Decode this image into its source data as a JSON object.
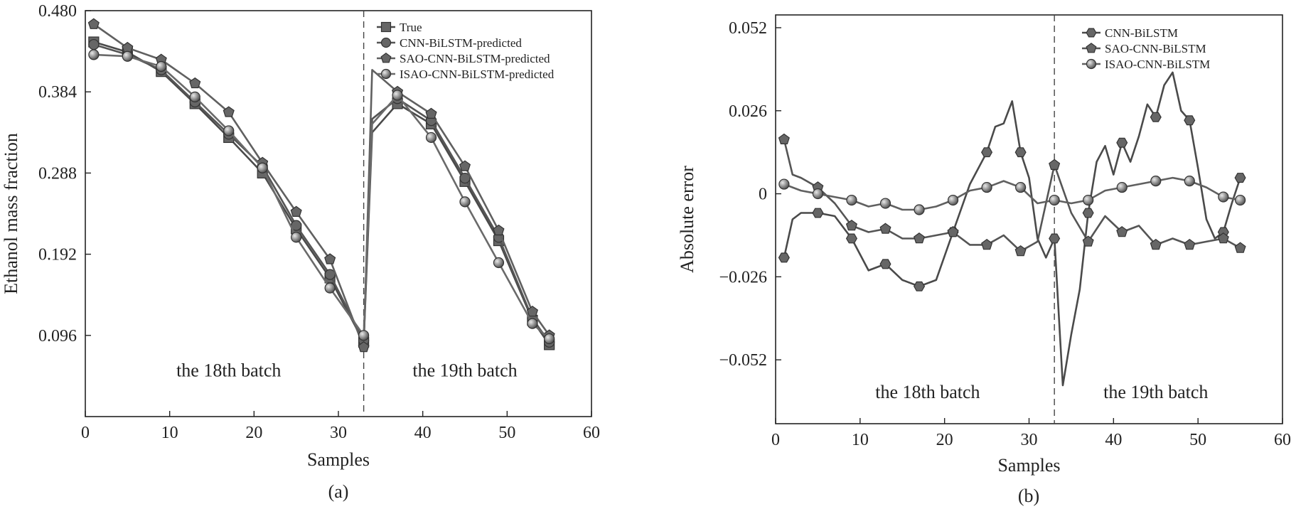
{
  "chart_data": [
    {
      "type": "line",
      "panel_label": "(a)",
      "xlabel": "Samples",
      "ylabel": "Ethanol mass fraction",
      "xlim": [
        0,
        60
      ],
      "ylim": [
        0,
        0.48
      ],
      "xticks": [
        0,
        10,
        20,
        30,
        40,
        50,
        60
      ],
      "yticks": [
        0.096,
        0.192,
        0.288,
        0.384,
        0.48
      ],
      "ytick_labels": [
        "0.096",
        "0.192",
        "0.288",
        "0.384",
        "0.480"
      ],
      "legend_position": "top-right",
      "divider_x": 33,
      "annotations": [
        {
          "text": "the 18th batch",
          "x": 17,
          "y": 0.055
        },
        {
          "text": "the 19th batch",
          "x": 45,
          "y": 0.055
        }
      ],
      "series": [
        {
          "name": "True",
          "marker": "square",
          "x": [
            1,
            5,
            9,
            13,
            17,
            21,
            25,
            29,
            33,
            34,
            37,
            41,
            45,
            49,
            53,
            55
          ],
          "y": [
            0.443,
            0.431,
            0.408,
            0.37,
            0.33,
            0.288,
            0.222,
            0.164,
            0.088,
            0.336,
            0.37,
            0.346,
            0.278,
            0.208,
            0.114,
            0.085
          ]
        },
        {
          "name": "CNN-BiLSTM-predicted",
          "marker": "circle",
          "x": [
            1,
            5,
            9,
            13,
            17,
            21,
            25,
            29,
            33,
            34,
            37,
            41,
            45,
            49,
            53,
            55
          ],
          "y": [
            0.44,
            0.428,
            0.41,
            0.372,
            0.334,
            0.296,
            0.226,
            0.168,
            0.09,
            0.352,
            0.376,
            0.35,
            0.282,
            0.212,
            0.116,
            0.088
          ]
        },
        {
          "name": "SAO-CNN-BiLSTM-predicted",
          "marker": "pentagon",
          "x": [
            1,
            5,
            9,
            13,
            17,
            21,
            25,
            29,
            33,
            34,
            37,
            41,
            45,
            49,
            53,
            55
          ],
          "y": [
            0.464,
            0.436,
            0.422,
            0.394,
            0.36,
            0.3,
            0.242,
            0.186,
            0.082,
            0.41,
            0.384,
            0.358,
            0.296,
            0.22,
            0.124,
            0.096
          ]
        },
        {
          "name": "ISAO-CNN-BiLSTM-predicted",
          "marker": "sphere",
          "x": [
            1,
            5,
            9,
            13,
            17,
            21,
            25,
            29,
            33,
            34,
            37,
            41,
            45,
            49,
            53,
            55
          ],
          "y": [
            0.428,
            0.426,
            0.414,
            0.378,
            0.338,
            0.294,
            0.212,
            0.152,
            0.096,
            0.346,
            0.38,
            0.33,
            0.254,
            0.182,
            0.11,
            0.092
          ]
        }
      ]
    },
    {
      "type": "line",
      "panel_label": "(b)",
      "xlabel": "Samples",
      "ylabel": "Absolute error",
      "xlim": [
        0,
        60
      ],
      "ylim": [
        -0.072,
        0.056
      ],
      "xticks": [
        0,
        10,
        20,
        30,
        40,
        50,
        60
      ],
      "yticks": [
        -0.052,
        -0.026,
        0,
        0.026,
        0.052
      ],
      "ytick_labels": [
        "−0.052",
        "−0.026",
        "0",
        "0.026",
        "0.052"
      ],
      "legend_position": "top-right",
      "divider_x": 33,
      "annotations": [
        {
          "text": "the 18th batch",
          "x": 18,
          "y": -0.062
        },
        {
          "text": "the 19th batch",
          "x": 45,
          "y": -0.062
        }
      ],
      "series": [
        {
          "name": "CNN-BiLSTM",
          "marker": "hexagon",
          "x": [
            1,
            2,
            3,
            5,
            7,
            9,
            11,
            13,
            15,
            17,
            19,
            21,
            23,
            25,
            26,
            27,
            28,
            29,
            30,
            31,
            32,
            33,
            34,
            35,
            36,
            37,
            38,
            39,
            40,
            41,
            42,
            43,
            44,
            45,
            46,
            47,
            48,
            49,
            50,
            51,
            52,
            53,
            54,
            55
          ],
          "y": [
            -0.02,
            -0.008,
            -0.006,
            -0.006,
            -0.007,
            -0.014,
            -0.024,
            -0.022,
            -0.027,
            -0.029,
            -0.027,
            -0.012,
            0.003,
            0.013,
            0.021,
            0.022,
            0.029,
            0.013,
            0.005,
            -0.014,
            -0.02,
            -0.014,
            -0.06,
            -0.044,
            -0.03,
            -0.006,
            0.01,
            0.015,
            0.006,
            0.016,
            0.01,
            0.018,
            0.028,
            0.024,
            0.034,
            0.038,
            0.026,
            0.023,
            0.008,
            -0.008,
            -0.014,
            -0.012,
            -0.003,
            0.005
          ]
        },
        {
          "name": "SAO-CNN-BiLSTM",
          "marker": "pentagon",
          "x": [
            1,
            2,
            3,
            5,
            7,
            9,
            11,
            13,
            15,
            17,
            19,
            21,
            23,
            25,
            27,
            29,
            31,
            32,
            33,
            35,
            37,
            39,
            41,
            43,
            45,
            47,
            49,
            51,
            53,
            55
          ],
          "y": [
            0.017,
            0.006,
            0.005,
            0.002,
            -0.003,
            -0.01,
            -0.012,
            -0.011,
            -0.014,
            -0.014,
            -0.013,
            -0.012,
            -0.016,
            -0.016,
            -0.013,
            -0.018,
            -0.015,
            -0.003,
            0.009,
            -0.006,
            -0.015,
            -0.007,
            -0.012,
            -0.01,
            -0.016,
            -0.014,
            -0.016,
            -0.015,
            -0.014,
            -0.017
          ]
        },
        {
          "name": "ISAO-CNN-BiLSTM",
          "marker": "sphere",
          "x": [
            1,
            3,
            5,
            7,
            9,
            11,
            13,
            15,
            17,
            19,
            21,
            23,
            25,
            27,
            29,
            31,
            33,
            35,
            37,
            39,
            41,
            43,
            45,
            47,
            49,
            51,
            53,
            55
          ],
          "y": [
            0.003,
            0.001,
            0.0,
            -0.001,
            -0.002,
            -0.004,
            -0.003,
            -0.005,
            -0.005,
            -0.004,
            -0.002,
            0.001,
            0.002,
            0.004,
            0.002,
            -0.003,
            -0.002,
            -0.003,
            -0.002,
            0.001,
            0.002,
            0.003,
            0.004,
            0.005,
            0.004,
            0.002,
            -0.001,
            -0.002
          ]
        }
      ]
    }
  ]
}
